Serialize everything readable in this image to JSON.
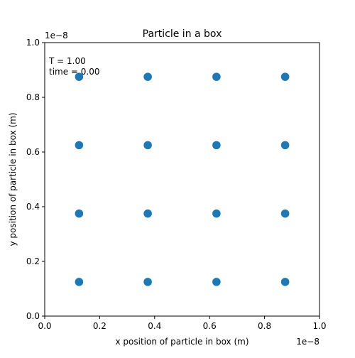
{
  "chart_data": {
    "type": "scatter",
    "title": "Particle in a box",
    "xlabel": "x position of particle in box (m)",
    "ylabel": "y position of particle in box (m)",
    "x_scale_label": "1e−8",
    "y_scale_label": "1e−8",
    "xlim": [
      0.0,
      1.0
    ],
    "ylim": [
      0.0,
      1.0
    ],
    "xticks": [
      "0.0",
      "0.2",
      "0.4",
      "0.6",
      "0.8",
      "1.0"
    ],
    "yticks": [
      "0.0",
      "0.2",
      "0.4",
      "0.6",
      "0.8",
      "1.0"
    ],
    "grid": false,
    "marker_color": "#1f77b4",
    "points": [
      [
        0.125,
        0.125
      ],
      [
        0.375,
        0.125
      ],
      [
        0.625,
        0.125
      ],
      [
        0.875,
        0.125
      ],
      [
        0.125,
        0.375
      ],
      [
        0.375,
        0.375
      ],
      [
        0.625,
        0.375
      ],
      [
        0.875,
        0.375
      ],
      [
        0.125,
        0.625
      ],
      [
        0.375,
        0.625
      ],
      [
        0.625,
        0.625
      ],
      [
        0.875,
        0.625
      ],
      [
        0.125,
        0.875
      ],
      [
        0.375,
        0.875
      ],
      [
        0.625,
        0.875
      ],
      [
        0.875,
        0.875
      ]
    ],
    "annotations": [
      "T = 1.00",
      "time = 0.00"
    ]
  }
}
